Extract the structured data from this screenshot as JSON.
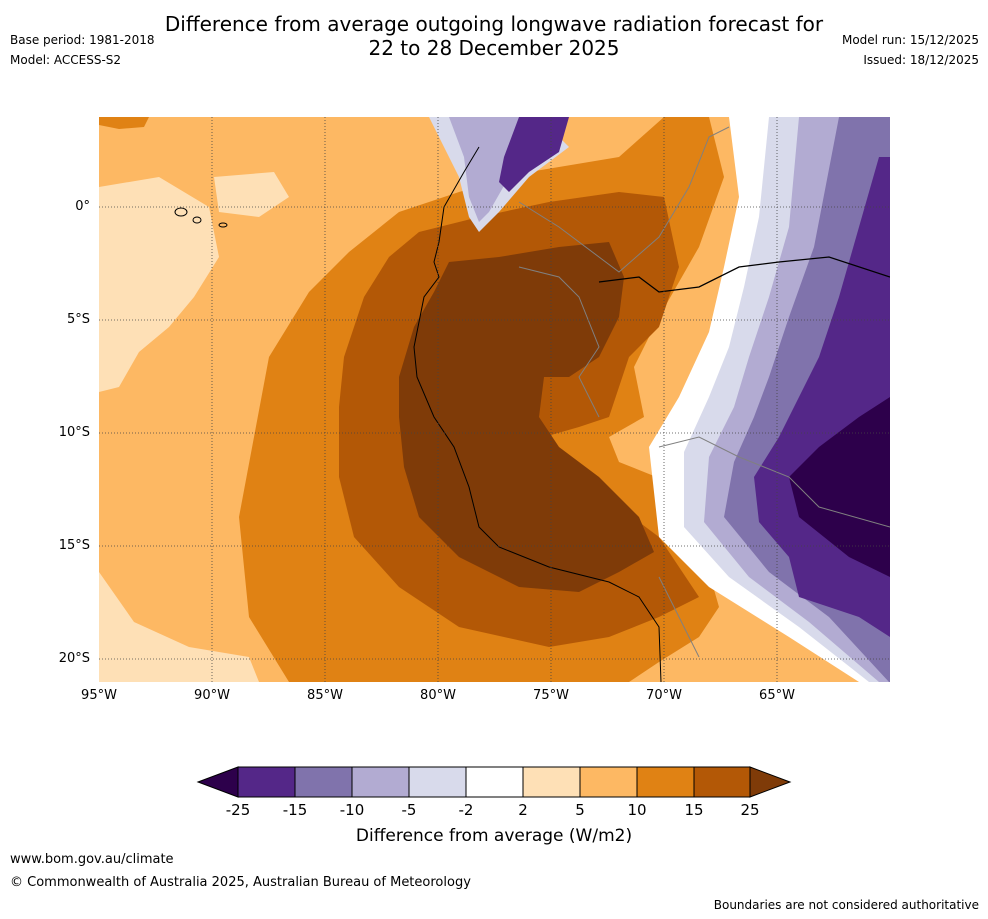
{
  "title_line1": "Difference from average outgoing longwave radiation forecast for",
  "title_line2": "22 to 28 December 2025",
  "base_period": "Base period: 1981-2018",
  "model": "Model: ACCESS-S2",
  "model_run": "Model run: 15/12/2025",
  "issued": "Issued: 18/12/2025",
  "map": {
    "lat_labels": [
      "0°",
      "5°S",
      "10°S",
      "15°S",
      "20°S"
    ],
    "lon_labels": [
      "95°W",
      "90°W",
      "85°W",
      "80°W",
      "75°W",
      "70°W",
      "65°W"
    ]
  },
  "colorbar": {
    "labels": [
      "-25",
      "-15",
      "-10",
      "-5",
      "-2",
      "2",
      "5",
      "10",
      "15",
      "25"
    ],
    "colors": [
      "#2d004b",
      "#542788",
      "#8073ac",
      "#b2abd2",
      "#d8daeb",
      "#ffffff",
      "#fee0b6",
      "#fdb863",
      "#e08214",
      "#b35806",
      "#7f3b08"
    ],
    "title": "Difference from average (W/m2)"
  },
  "footer": {
    "website": "www.bom.gov.au/climate",
    "copyright": "© Commonwealth of Australia 2025, Australian Bureau of Meteorology",
    "disclaimer": "Boundaries are not considered authoritative"
  }
}
